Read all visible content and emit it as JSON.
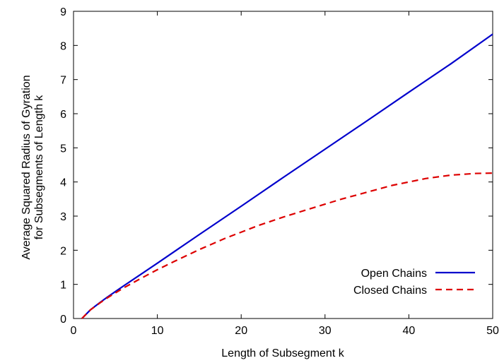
{
  "chart_data": {
    "type": "line",
    "title": "",
    "xlabel": "Length of Subsegment k",
    "ylabel_lines": [
      "Average Squared Radius of Gyration",
      "for Subsegments of Length k"
    ],
    "xlim": [
      0,
      50
    ],
    "ylim": [
      0,
      9
    ],
    "xticks": [
      0,
      10,
      20,
      30,
      40,
      50
    ],
    "yticks": [
      0,
      1,
      2,
      3,
      4,
      5,
      6,
      7,
      8,
      9
    ],
    "grid": false,
    "legend_position": "bottom-right",
    "series": [
      {
        "name": "Open Chains",
        "color": "#0000cc",
        "style": "solid",
        "x": [
          1,
          2,
          3,
          4,
          5,
          6,
          8,
          10,
          15,
          20,
          25,
          30,
          35,
          40,
          45,
          50
        ],
        "y": [
          0.0,
          0.25,
          0.44,
          0.62,
          0.79,
          0.96,
          1.29,
          1.62,
          2.46,
          3.29,
          4.13,
          4.96,
          5.79,
          6.63,
          7.46,
          8.33
        ]
      },
      {
        "name": "Closed Chains",
        "color": "#dd0000",
        "style": "dashed",
        "x": [
          1,
          2,
          3,
          4,
          5,
          6,
          8,
          10,
          12,
          15,
          18,
          20,
          22,
          25,
          28,
          30,
          32,
          35,
          38,
          40,
          42,
          45,
          48,
          50
        ],
        "y": [
          0.0,
          0.25,
          0.43,
          0.6,
          0.75,
          0.9,
          1.17,
          1.43,
          1.67,
          2.02,
          2.34,
          2.53,
          2.72,
          2.97,
          3.2,
          3.35,
          3.5,
          3.7,
          3.9,
          4.0,
          4.1,
          4.2,
          4.25,
          4.26
        ]
      }
    ]
  }
}
